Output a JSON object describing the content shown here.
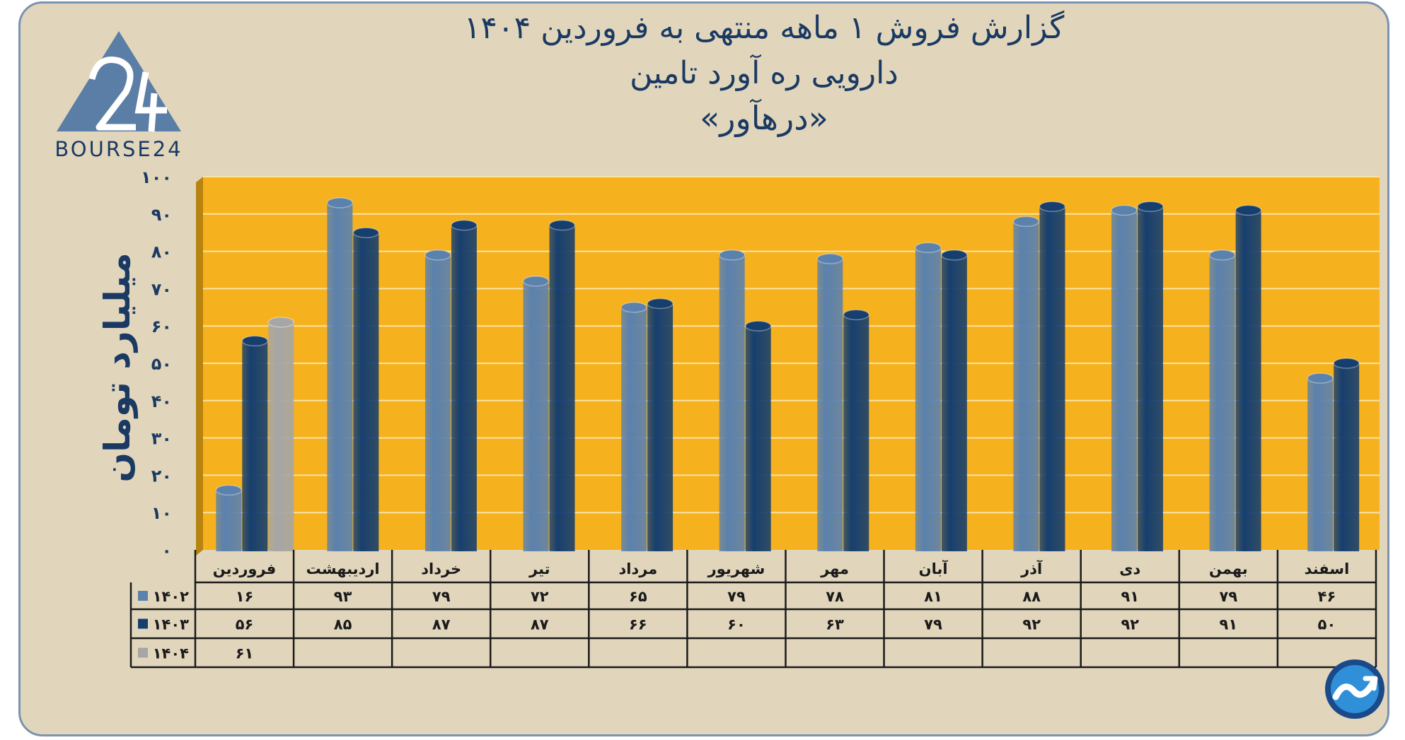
{
  "title": {
    "line1": "گزارش  فروش ۱ ماهه منتهی به فروردین ۱۴۰۴",
    "line2": "دارویی ره آورد تامین",
    "line3": "«درهآور»"
  },
  "logo": {
    "text": "BOURSE24"
  },
  "colors": {
    "y1402": "#5b81ad",
    "y1403": "#173f6e",
    "y1404": "#a6a6a6",
    "plot_bg": "#f6b11e",
    "frame_bg": "#e1d6bc",
    "text": "#1b3a63"
  },
  "chart_data": {
    "type": "bar",
    "title": "گزارش  فروش ۱ ماهه منتهی به فروردین ۱۴۰۴",
    "ylabel": "میلیارد تومان",
    "ylim": [
      0,
      100
    ],
    "yticks": [
      0,
      10,
      20,
      30,
      40,
      50,
      60,
      70,
      80,
      90,
      100
    ],
    "ytick_labels": [
      "۰",
      "۱۰",
      "۲۰",
      "۳۰",
      "۴۰",
      "۵۰",
      "۶۰",
      "۷۰",
      "۸۰",
      "۹۰",
      "۱۰۰"
    ],
    "categories": [
      "فروردین",
      "اردیبهشت",
      "خرداد",
      "تیر",
      "مرداد",
      "شهریور",
      "مهر",
      "آبان",
      "آذر",
      "دی",
      "بهمن",
      "اسفند"
    ],
    "series": [
      {
        "name": "۱۴۰۲",
        "values": [
          16,
          93,
          79,
          72,
          65,
          79,
          78,
          81,
          88,
          91,
          79,
          46
        ],
        "labels": [
          "۱۶",
          "۹۳",
          "۷۹",
          "۷۲",
          "۶۵",
          "۷۹",
          "۷۸",
          "۸۱",
          "۸۸",
          "۹۱",
          "۷۹",
          "۴۶"
        ]
      },
      {
        "name": "۱۴۰۳",
        "values": [
          56,
          85,
          87,
          87,
          66,
          60,
          63,
          79,
          92,
          92,
          91,
          50
        ],
        "labels": [
          "۵۶",
          "۸۵",
          "۸۷",
          "۸۷",
          "۶۶",
          "۶۰",
          "۶۳",
          "۷۹",
          "۹۲",
          "۹۲",
          "۹۱",
          "۵۰"
        ]
      },
      {
        "name": "۱۴۰۴",
        "values": [
          61,
          null,
          null,
          null,
          null,
          null,
          null,
          null,
          null,
          null,
          null,
          null
        ],
        "labels": [
          "۶۱",
          "",
          "",
          "",
          "",
          "",
          "",
          "",
          "",
          "",
          "",
          ""
        ]
      }
    ]
  }
}
